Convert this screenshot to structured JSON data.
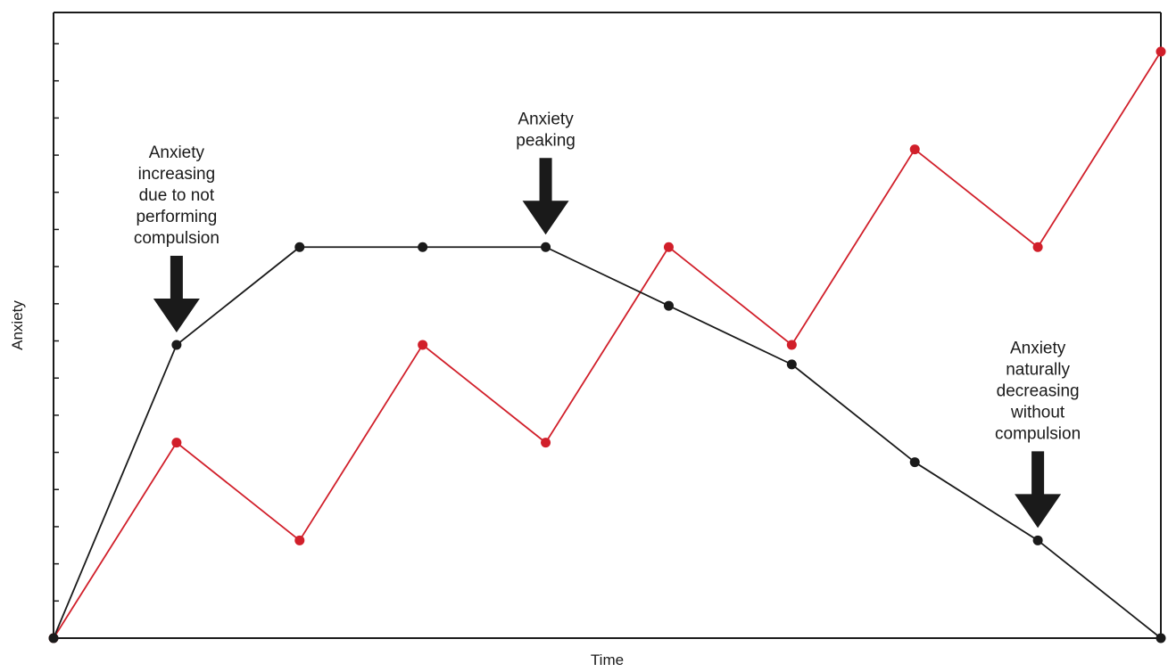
{
  "chart_data": {
    "type": "line",
    "title": "",
    "xlabel": "Time",
    "ylabel": "Anxiety",
    "x": [
      0,
      1,
      2,
      3,
      4,
      5,
      6,
      7,
      8,
      9
    ],
    "xlim": [
      0,
      9
    ],
    "ylim": [
      0,
      16
    ],
    "y_ticks": 16,
    "grid": false,
    "legend": "none",
    "series": [
      {
        "color": "#d11f2a",
        "values": [
          0,
          5,
          2.5,
          7.5,
          5,
          10,
          7.5,
          12.5,
          10,
          15
        ]
      },
      {
        "color": "#1a1a1a",
        "values": [
          0,
          7.5,
          10,
          10,
          10,
          8.5,
          7,
          4.5,
          2.5,
          0
        ]
      }
    ],
    "annotations": [
      {
        "lines": [
          "Anxiety",
          "increasing",
          "due to not",
          "performing",
          "compulsion"
        ],
        "x": 1,
        "y": 7.5
      },
      {
        "lines": [
          "Anxiety",
          "peaking"
        ],
        "x": 4,
        "y": 10
      },
      {
        "lines": [
          "Anxiety",
          "naturally",
          "decreasing",
          "without",
          "compulsion"
        ],
        "x": 8,
        "y": 2.5
      }
    ]
  }
}
